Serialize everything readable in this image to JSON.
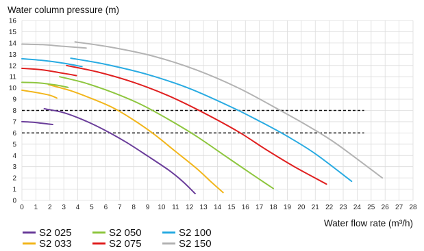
{
  "chart_data": {
    "type": "line",
    "ylabel": "Water column pressure (m)",
    "xlabel": "Water flow rate (m³/h)",
    "xlim": [
      0,
      28
    ],
    "ylim": [
      0,
      16
    ],
    "x_ticks": [
      0,
      1,
      2,
      3,
      4,
      5,
      6,
      7,
      8,
      9,
      10,
      11,
      12,
      13,
      14,
      15,
      16,
      17,
      18,
      19,
      20,
      21,
      22,
      23,
      24,
      25,
      26,
      27,
      28
    ],
    "y_ticks": [
      0,
      1,
      2,
      3,
      4,
      5,
      6,
      7,
      8,
      9,
      10,
      11,
      12,
      13,
      14,
      15,
      16
    ],
    "grid": true,
    "legend_position": "bottom-left",
    "reference_lines": [
      {
        "y": 8,
        "x_range": [
          0,
          24.5
        ],
        "style": "dashed",
        "color": "#111111"
      },
      {
        "y": 6,
        "x_range": [
          0,
          24.5
        ],
        "style": "dashed",
        "color": "#111111"
      }
    ],
    "series": [
      {
        "name": "S2 025",
        "color": "#6a3d9a",
        "low": [
          [
            0,
            7.0
          ],
          [
            0.8,
            6.95
          ],
          [
            1.5,
            6.85
          ],
          [
            2.2,
            6.75
          ]
        ],
        "high": [
          [
            1.6,
            8.15
          ],
          [
            3,
            7.8
          ],
          [
            4.5,
            7.1
          ],
          [
            6,
            6.2
          ],
          [
            7.5,
            5.15
          ],
          [
            9,
            3.95
          ],
          [
            10.5,
            2.7
          ],
          [
            11.5,
            1.7
          ],
          [
            12.4,
            0.6
          ]
        ]
      },
      {
        "name": "S2 033",
        "color": "#f2b61c",
        "low": [
          [
            0,
            9.8
          ],
          [
            1,
            9.6
          ],
          [
            2,
            9.35
          ],
          [
            2.5,
            9.1
          ]
        ],
        "high": [
          [
            1.9,
            10.3
          ],
          [
            3.5,
            9.75
          ],
          [
            5,
            9.05
          ],
          [
            6.5,
            8.25
          ],
          [
            8,
            7.15
          ],
          [
            9.5,
            5.85
          ],
          [
            11,
            4.35
          ],
          [
            12.5,
            2.85
          ],
          [
            13.5,
            1.7
          ],
          [
            14.4,
            0.7
          ]
        ]
      },
      {
        "name": "S2 050",
        "color": "#8ec63f",
        "low": [
          [
            0,
            10.5
          ],
          [
            1.2,
            10.45
          ],
          [
            2.5,
            10.25
          ],
          [
            3.3,
            10.05
          ]
        ],
        "high": [
          [
            2.7,
            11.0
          ],
          [
            4.5,
            10.45
          ],
          [
            6.5,
            9.6
          ],
          [
            8.5,
            8.55
          ],
          [
            10.5,
            7.2
          ],
          [
            12.5,
            5.7
          ],
          [
            14.5,
            4.0
          ],
          [
            16.5,
            2.3
          ],
          [
            18,
            1.05
          ]
        ]
      },
      {
        "name": "S2 075",
        "color": "#e02020",
        "low": [
          [
            0,
            11.75
          ],
          [
            1.5,
            11.6
          ],
          [
            3,
            11.3
          ],
          [
            3.9,
            11.1
          ]
        ],
        "high": [
          [
            3.2,
            12.0
          ],
          [
            5.5,
            11.4
          ],
          [
            8,
            10.5
          ],
          [
            10.5,
            9.3
          ],
          [
            13,
            7.8
          ],
          [
            15.5,
            6.1
          ],
          [
            17.5,
            4.5
          ],
          [
            19.5,
            3.0
          ],
          [
            21.8,
            1.45
          ]
        ]
      },
      {
        "name": "S2 100",
        "color": "#29abe2",
        "low": [
          [
            0,
            12.6
          ],
          [
            1.5,
            12.45
          ],
          [
            3,
            12.2
          ],
          [
            4.3,
            11.9
          ]
        ],
        "high": [
          [
            3.5,
            12.65
          ],
          [
            6,
            12.1
          ],
          [
            9,
            11.2
          ],
          [
            12,
            9.95
          ],
          [
            15,
            8.3
          ],
          [
            17,
            7.05
          ],
          [
            19,
            5.7
          ],
          [
            21,
            4.15
          ],
          [
            23.6,
            1.7
          ]
        ]
      },
      {
        "name": "S2 150",
        "color": "#b3b3b3",
        "low": [
          [
            0,
            13.9
          ],
          [
            1.5,
            13.85
          ],
          [
            3,
            13.7
          ],
          [
            4.6,
            13.55
          ]
        ],
        "high": [
          [
            3.8,
            14.1
          ],
          [
            6.5,
            13.6
          ],
          [
            9.5,
            12.8
          ],
          [
            12.5,
            11.6
          ],
          [
            15.5,
            10.0
          ],
          [
            18.5,
            8.0
          ],
          [
            20.5,
            6.6
          ],
          [
            22.5,
            5.05
          ],
          [
            25.8,
            2.0
          ]
        ]
      }
    ]
  }
}
